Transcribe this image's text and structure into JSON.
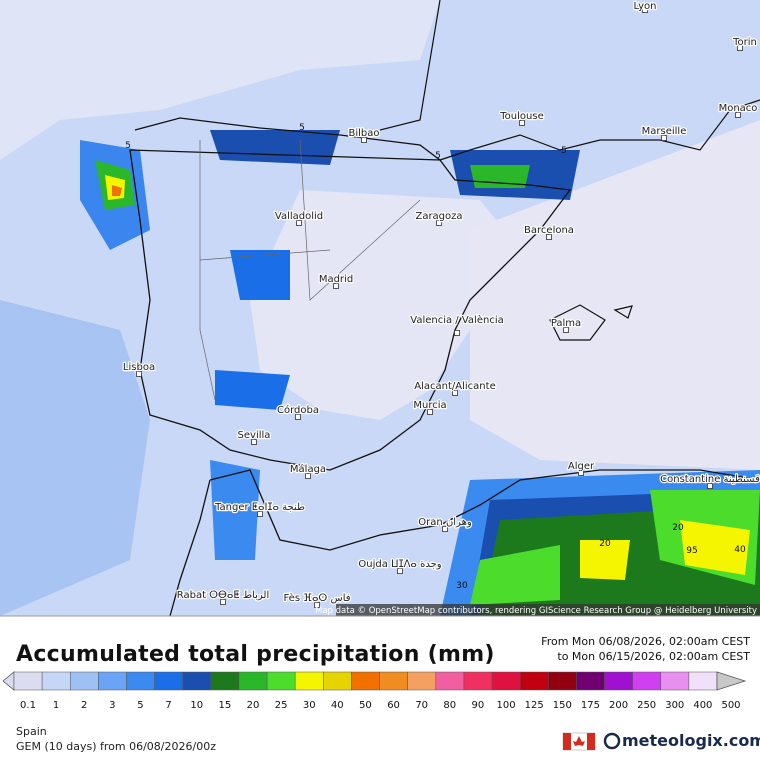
{
  "map": {
    "cities": [
      "Lyon",
      "Torin",
      "Monaco",
      "Toulouse",
      "Marseille",
      "Bilbao",
      "Valladolid",
      "Zaragoza",
      "Barcelona",
      "Madrid",
      "Valencia / València",
      "Palma",
      "Lisboa",
      "Alacant/Alicante",
      "Murcia",
      "Córdoba",
      "Sevilla",
      "Málaga",
      "Alger",
      "Constantine قسنطينة",
      "Tanger ⵟⴰⵏⵊⴰ طنجة",
      "Oran وهران",
      "Oujda ⵡⵊⴷⴰ وجدة",
      "Rabat ⵔⴱⴰⵟ الرباط",
      "Fès ⴼⴰⵙ فاس"
    ],
    "contour_labels": [
      "5",
      "5",
      "5",
      "5",
      "20",
      "20",
      "30",
      "40",
      "95"
    ],
    "attribution": "Map data © OpenStreetMap contributors, rendering GIScience Research Group @ Heidelberg University"
  },
  "title": "Accumulated total precipitation (mm)",
  "period": {
    "from": "From Mon 06/08/2026, 02:00am CEST",
    "to": "to Mon 06/15/2026, 02:00am CEST"
  },
  "legend": {
    "values": [
      0.1,
      1,
      2,
      3,
      5,
      7,
      10,
      15,
      20,
      25,
      30,
      40,
      50,
      60,
      70,
      80,
      90,
      100,
      125,
      150,
      175,
      200,
      250,
      300,
      400,
      500
    ],
    "colors": [
      "#dcdcf0",
      "#c6d6f6",
      "#9fc0f5",
      "#6aa5f5",
      "#3a8af0",
      "#1a6fe8",
      "#1a4fb0",
      "#1c7a1c",
      "#2ab82a",
      "#4cdc2c",
      "#f5f500",
      "#e6d400",
      "#f07000",
      "#f08c20",
      "#f4a060",
      "#f060a0",
      "#f03060",
      "#e01040",
      "#c00010",
      "#900010",
      "#700070",
      "#a010d0",
      "#d040f0",
      "#e890f0",
      "#f0e0f8",
      "#c8c8c8"
    ]
  },
  "footer": {
    "region": "Spain",
    "model": "GEM (10 days) from 06/08/2026/00z",
    "brand": "meteologix.com"
  }
}
